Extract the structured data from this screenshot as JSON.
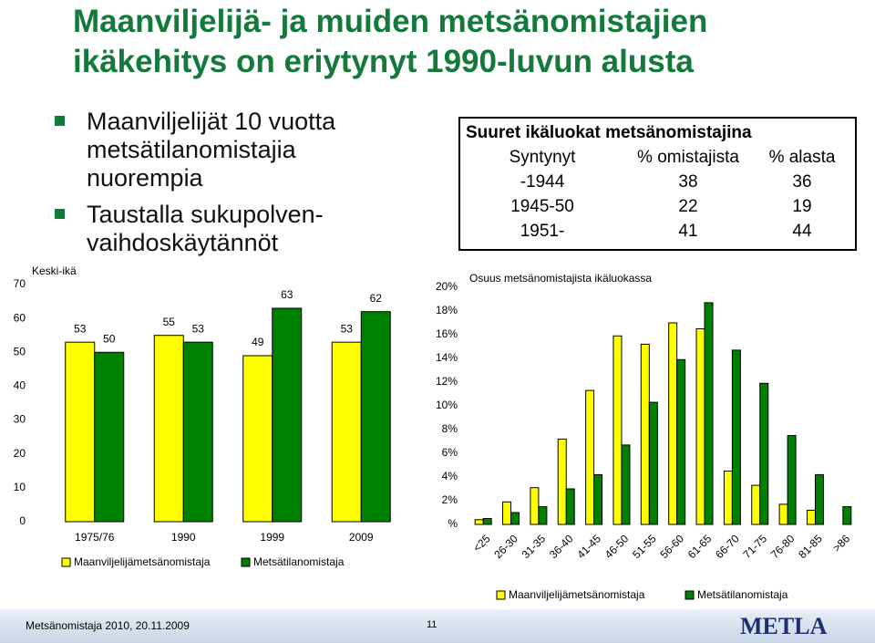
{
  "title": [
    "Maanviljelijä- ja muiden metsänomistajien",
    "ikäkehitys on eriytynyt 1990-luvun alusta"
  ],
  "bullets": [
    [
      "Maanviljelijät 10 vuotta",
      "metsätilanomistajia",
      "nuorempia"
    ],
    [
      "Taustalla sukupolven-",
      "vaihdoskäytännöt"
    ]
  ],
  "table": {
    "title": "Suuret ikäluokat metsänomistajina",
    "columns": [
      "Syntynyt",
      "% omistajista",
      "% alasta"
    ],
    "rows": [
      [
        "-1944",
        "38",
        "36"
      ],
      [
        "1945-50",
        "22",
        "19"
      ],
      [
        "1951-",
        "41",
        "44"
      ]
    ]
  },
  "chart_data": [
    {
      "type": "bar",
      "y_label": "Keski-ikä",
      "show_values": true,
      "categories": [
        "1975/76",
        "1990",
        "1999",
        "2009"
      ],
      "series": [
        {
          "name": "Maanviljelijämetsänomistaja",
          "color": "#ffff00",
          "values": [
            53,
            55,
            49,
            53
          ]
        },
        {
          "name": "Metsätilanomistaja",
          "color": "#008000",
          "values": [
            50,
            53,
            63,
            62
          ]
        }
      ],
      "ylim": [
        0,
        70
      ],
      "yticks": [
        0,
        10,
        20,
        30,
        40,
        50,
        60,
        70
      ],
      "grid": false
    },
    {
      "type": "bar",
      "title": "Osuus metsänomistajista ikäluokassa",
      "show_values": false,
      "categories": [
        "<25",
        "26-30",
        "31-35",
        "36-40",
        "41-45",
        "46-50",
        "51-55",
        "56-60",
        "61-65",
        "66-70",
        "71-75",
        "76-80",
        "81-85",
        ">86"
      ],
      "series": [
        {
          "name": "Maanviljelijämetsänomistaja",
          "color": "#ffff00",
          "values": [
            0.4,
            1.9,
            3.1,
            7.2,
            11.3,
            15.9,
            15.2,
            17.0,
            16.5,
            4.5,
            3.3,
            1.7,
            1.2,
            0
          ]
        },
        {
          "name": "Metsätilanomistaja",
          "color": "#008000",
          "values": [
            0.5,
            1.0,
            1.5,
            3.0,
            4.2,
            6.7,
            10.3,
            13.9,
            18.7,
            14.7,
            11.9,
            7.5,
            4.2,
            1.5
          ]
        }
      ],
      "ylim": [
        0,
        20
      ],
      "yticks": [
        {
          "value": 0,
          "label": "%"
        },
        {
          "value": 2,
          "label": "2%"
        },
        {
          "value": 4,
          "label": "4%"
        },
        {
          "value": 6,
          "label": "6%"
        },
        {
          "value": 8,
          "label": "8%"
        },
        {
          "value": 10,
          "label": "10%"
        },
        {
          "value": 12,
          "label": "12%"
        },
        {
          "value": 14,
          "label": "14%"
        },
        {
          "value": 16,
          "label": "16%"
        },
        {
          "value": 18,
          "label": "18%"
        },
        {
          "value": 20,
          "label": "20%"
        }
      ],
      "grid": false
    }
  ],
  "footer": {
    "left": "Metsänomistaja 2010, 20.11.2009",
    "page": "11",
    "logo": "METLA"
  }
}
